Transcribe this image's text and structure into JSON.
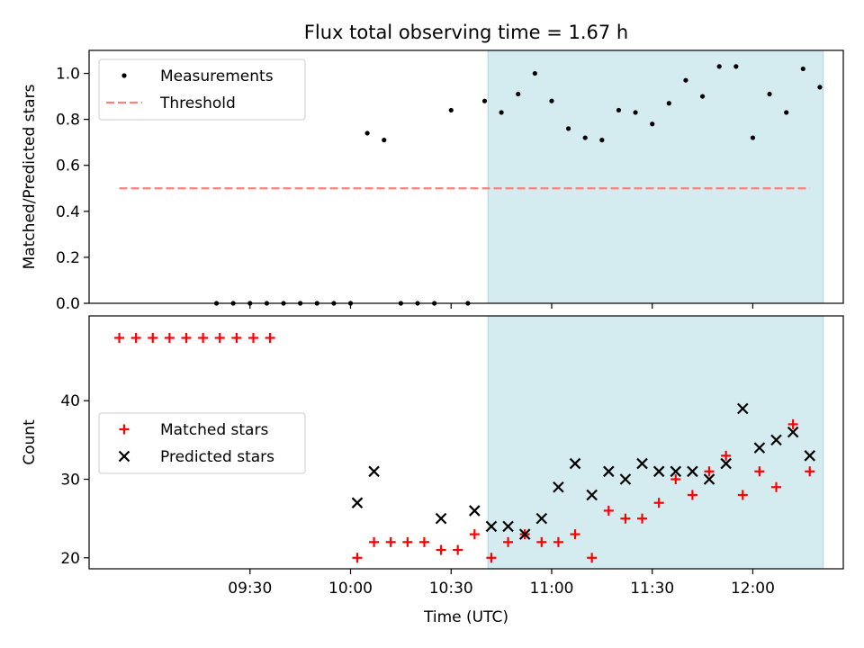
{
  "chart_data": {
    "title": "Flux total observing time = 1.67 h",
    "xlabel": "Time (UTC)",
    "x_ticks": [
      "09:30",
      "10:00",
      "10:30",
      "11:00",
      "11:30",
      "12:00"
    ],
    "x_tick_minutes": [
      570,
      600,
      630,
      660,
      690,
      720
    ],
    "xlim_minutes": [
      522,
      747
    ],
    "highlight_span_minutes": [
      641,
      741
    ],
    "highlight_color": "#d4ebf0",
    "panels": [
      {
        "type": "scatter",
        "ylabel": "Matched/Predicted stars",
        "ylim": [
          0,
          1.1
        ],
        "y_ticks": [
          0,
          0.2,
          0.4,
          0.6,
          0.8,
          1.0
        ],
        "y_tick_labels": [
          "0.0",
          "0.2",
          "0.4",
          "0.6",
          "0.8",
          "1.0"
        ],
        "legend_position": "upper-left",
        "series": [
          {
            "name": "Measurements",
            "kind": "dot",
            "color": "#000000",
            "x": [
              560,
              565,
              570,
              575,
              580,
              585,
              590,
              595,
              600,
              605,
              610,
              615,
              620,
              625,
              630,
              635,
              640,
              645,
              650,
              655,
              660,
              665,
              670,
              675,
              680,
              685,
              690,
              695,
              700,
              705,
              710,
              715,
              720,
              725,
              730,
              735,
              740
            ],
            "y": [
              0,
              0,
              0,
              0,
              0,
              0,
              0,
              0,
              0,
              0.74,
              0.71,
              0,
              0,
              0,
              0.84,
              0,
              0.88,
              0.83,
              0.91,
              1.0,
              0.88,
              0.76,
              0.72,
              0.71,
              0.84,
              0.83,
              0.78,
              0.87,
              0.97,
              0.9,
              1.03,
              1.03,
              0.72,
              0.91,
              0.83,
              1.02,
              0.94
            ]
          },
          {
            "name": "Threshold",
            "kind": "dashed-line",
            "color": "#ff7f7f",
            "x": [
              531,
              737
            ],
            "y": [
              0.5,
              0.5
            ]
          }
        ]
      },
      {
        "type": "scatter",
        "ylabel": "Count",
        "ylim": [
          18.6,
          50.8
        ],
        "y_ticks": [
          20,
          30,
          40
        ],
        "y_tick_labels": [
          "20",
          "30",
          "40"
        ],
        "legend_position": "center-left",
        "series": [
          {
            "name": "Matched stars",
            "kind": "plus",
            "color": "#ff0000",
            "x": [
              531,
              536,
              541,
              546,
              551,
              556,
              561,
              566,
              571,
              576,
              602,
              607,
              612,
              617,
              622,
              627,
              632,
              637,
              642,
              647,
              652,
              657,
              662,
              667,
              672,
              677,
              682,
              687,
              692,
              697,
              702,
              707,
              712,
              717,
              722,
              727,
              732,
              737
            ],
            "y": [
              48,
              48,
              48,
              48,
              48,
              48,
              48,
              48,
              48,
              48,
              20,
              22,
              22,
              22,
              22,
              21,
              21,
              23,
              20,
              22,
              23,
              22,
              22,
              23,
              20,
              26,
              25,
              25,
              27,
              30,
              28,
              31,
              33,
              28,
              31,
              29,
              37,
              31
            ]
          },
          {
            "name": "Predicted stars",
            "kind": "cross",
            "color": "#000000",
            "x": [
              602,
              607,
              627,
              637,
              642,
              647,
              652,
              657,
              662,
              667,
              672,
              677,
              682,
              687,
              692,
              697,
              702,
              707,
              712,
              717,
              722,
              727,
              732,
              737
            ],
            "y": [
              27,
              31,
              25,
              26,
              24,
              24,
              23,
              25,
              29,
              32,
              28,
              31,
              30,
              32,
              31,
              31,
              31,
              30,
              32,
              39,
              34,
              35,
              36,
              33
            ]
          }
        ]
      }
    ]
  }
}
